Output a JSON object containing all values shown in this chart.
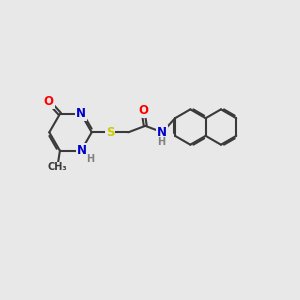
{
  "background_color": "#e8e8e8",
  "bond_color": "#3a3a3a",
  "bond_width": 1.5,
  "atom_colors": {
    "O": "#ff0000",
    "N": "#0000cc",
    "S": "#cccc00",
    "C": "#3a3a3a",
    "H": "#808080"
  },
  "font_size": 8.5,
  "figsize": [
    3.0,
    3.0
  ],
  "dpi": 100
}
